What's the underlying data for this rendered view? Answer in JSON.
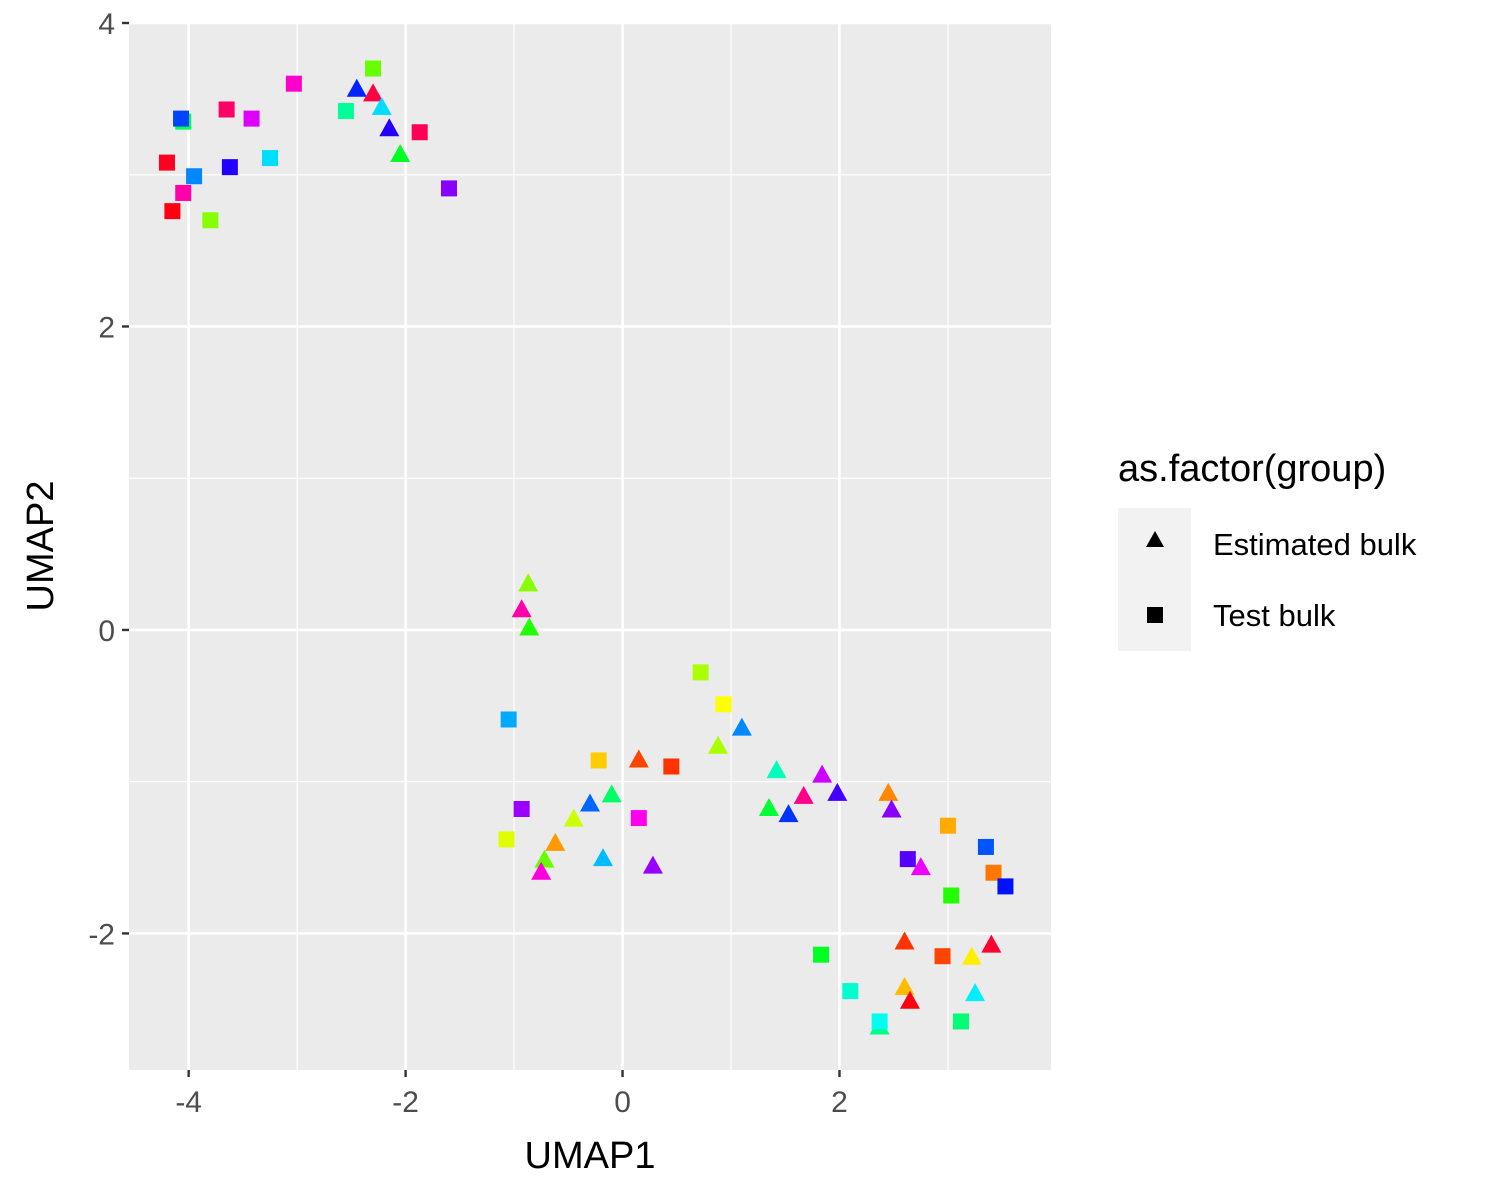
{
  "chart_data": {
    "type": "scatter",
    "title": "",
    "xlabel": "UMAP1",
    "ylabel": "UMAP2",
    "xlim": [
      -4.55,
      3.95
    ],
    "ylim": [
      -2.9,
      4.0
    ],
    "x_ticks": [
      -4,
      -2,
      0,
      2
    ],
    "x_tick_labels": [
      "-4",
      "-2",
      "0",
      "2"
    ],
    "y_ticks": [
      -2,
      0,
      2,
      4
    ],
    "y_tick_labels": [
      "-2",
      "0",
      "2",
      "4"
    ],
    "grid": true,
    "legend": {
      "title": "as.factor(group)",
      "position": "right",
      "entries": [
        {
          "label": "Estimated bulk",
          "shape": "triangle"
        },
        {
          "label": "Test bulk",
          "shape": "square"
        }
      ]
    },
    "colors": {
      "panel_background": "#ebebeb",
      "grid": "#ffffff",
      "legend_key_background": "#f2f2f2",
      "legend_marker": "#000000"
    },
    "series": [
      {
        "shape": "triangle",
        "points": [
          {
            "x": -2.45,
            "y": 3.56,
            "color": "#0022ff"
          },
          {
            "x": -2.3,
            "y": 3.53,
            "color": "#ff0044"
          },
          {
            "x": -2.22,
            "y": 3.44,
            "color": "#00ddff"
          },
          {
            "x": -2.15,
            "y": 3.3,
            "color": "#2200ff"
          },
          {
            "x": -2.05,
            "y": 3.13,
            "color": "#00ff22"
          },
          {
            "x": -0.87,
            "y": 0.3,
            "color": "#88ff00"
          },
          {
            "x": -0.93,
            "y": 0.13,
            "color": "#ff00aa"
          },
          {
            "x": -0.86,
            "y": 0.01,
            "color": "#22ff00"
          },
          {
            "x": 0.15,
            "y": -0.86,
            "color": "#ff4400"
          },
          {
            "x": 1.1,
            "y": -0.65,
            "color": "#0088ff"
          },
          {
            "x": 0.88,
            "y": -0.77,
            "color": "#aaff00"
          },
          {
            "x": -0.1,
            "y": -1.09,
            "color": "#00ff66"
          },
          {
            "x": -0.3,
            "y": -1.15,
            "color": "#0066ff"
          },
          {
            "x": -0.45,
            "y": -1.25,
            "color": "#ccff00"
          },
          {
            "x": -0.62,
            "y": -1.41,
            "color": "#ff9900"
          },
          {
            "x": -0.72,
            "y": -1.52,
            "color": "#66ff00"
          },
          {
            "x": -0.75,
            "y": -1.6,
            "color": "#ff00dd"
          },
          {
            "x": -0.18,
            "y": -1.51,
            "color": "#00bbff"
          },
          {
            "x": 0.28,
            "y": -1.56,
            "color": "#9900ff"
          },
          {
            "x": 1.42,
            "y": -0.93,
            "color": "#00ffbb"
          },
          {
            "x": 1.84,
            "y": -0.96,
            "color": "#cc00ff"
          },
          {
            "x": 1.67,
            "y": -1.1,
            "color": "#ff0088"
          },
          {
            "x": 1.98,
            "y": -1.08,
            "color": "#4400ff"
          },
          {
            "x": 1.35,
            "y": -1.18,
            "color": "#00ff33"
          },
          {
            "x": 1.53,
            "y": -1.22,
            "color": "#0033ff"
          },
          {
            "x": 2.45,
            "y": -1.08,
            "color": "#ff8800"
          },
          {
            "x": 2.48,
            "y": -1.19,
            "color": "#8800ff"
          },
          {
            "x": 2.75,
            "y": -1.57,
            "color": "#ee00ff"
          },
          {
            "x": 2.6,
            "y": -2.06,
            "color": "#ff3300"
          },
          {
            "x": 3.4,
            "y": -2.08,
            "color": "#ff0033"
          },
          {
            "x": 3.22,
            "y": -2.16,
            "color": "#ffee00"
          },
          {
            "x": 2.6,
            "y": -2.36,
            "color": "#ffbb00"
          },
          {
            "x": 2.65,
            "y": -2.45,
            "color": "#ff0011"
          },
          {
            "x": 3.25,
            "y": -2.4,
            "color": "#00eeff"
          },
          {
            "x": 2.37,
            "y": -2.62,
            "color": "#00ff88"
          }
        ]
      },
      {
        "shape": "square",
        "points": [
          {
            "x": -2.3,
            "y": 3.7,
            "color": "#66ff00"
          },
          {
            "x": -3.03,
            "y": 3.6,
            "color": "#ff00cc"
          },
          {
            "x": -3.65,
            "y": 3.43,
            "color": "#ff0066"
          },
          {
            "x": -2.55,
            "y": 3.42,
            "color": "#00ff99"
          },
          {
            "x": -3.42,
            "y": 3.37,
            "color": "#dd00ff"
          },
          {
            "x": -4.05,
            "y": 3.35,
            "color": "#00ff55"
          },
          {
            "x": -4.07,
            "y": 3.37,
            "color": "#0044ff"
          },
          {
            "x": -1.87,
            "y": 3.28,
            "color": "#ff0055"
          },
          {
            "x": -3.25,
            "y": 3.11,
            "color": "#00ddff"
          },
          {
            "x": -4.2,
            "y": 3.08,
            "color": "#ff0022"
          },
          {
            "x": -3.62,
            "y": 3.05,
            "color": "#2200ff"
          },
          {
            "x": -3.95,
            "y": 2.99,
            "color": "#0088ff"
          },
          {
            "x": -1.6,
            "y": 2.91,
            "color": "#8800ff"
          },
          {
            "x": -4.05,
            "y": 2.88,
            "color": "#ff00aa"
          },
          {
            "x": -4.15,
            "y": 2.76,
            "color": "#ff0011"
          },
          {
            "x": -3.8,
            "y": 2.7,
            "color": "#88ff00"
          },
          {
            "x": 0.72,
            "y": -0.28,
            "color": "#aaff00"
          },
          {
            "x": 0.93,
            "y": -0.49,
            "color": "#ffff00"
          },
          {
            "x": -1.05,
            "y": -0.59,
            "color": "#00aaff"
          },
          {
            "x": -0.22,
            "y": -0.86,
            "color": "#ffcc00"
          },
          {
            "x": 0.45,
            "y": -0.9,
            "color": "#ff3300"
          },
          {
            "x": -0.93,
            "y": -1.18,
            "color": "#9900ff"
          },
          {
            "x": 0.15,
            "y": -1.24,
            "color": "#ff00ee"
          },
          {
            "x": -1.07,
            "y": -1.38,
            "color": "#ddff00"
          },
          {
            "x": 3.0,
            "y": -1.29,
            "color": "#ffaa00"
          },
          {
            "x": 3.35,
            "y": -1.43,
            "color": "#0055ff"
          },
          {
            "x": 2.63,
            "y": -1.51,
            "color": "#5500ff"
          },
          {
            "x": 3.42,
            "y": -1.6,
            "color": "#ff7700"
          },
          {
            "x": 3.53,
            "y": -1.69,
            "color": "#0011ff"
          },
          {
            "x": 3.03,
            "y": -1.75,
            "color": "#22ff00"
          },
          {
            "x": 2.95,
            "y": -2.15,
            "color": "#ff4400"
          },
          {
            "x": 1.83,
            "y": -2.14,
            "color": "#00ff22"
          },
          {
            "x": 2.1,
            "y": -2.38,
            "color": "#00ffcc"
          },
          {
            "x": 3.12,
            "y": -2.58,
            "color": "#00ff77"
          },
          {
            "x": 2.37,
            "y": -2.58,
            "color": "#00ffee"
          }
        ]
      }
    ]
  }
}
